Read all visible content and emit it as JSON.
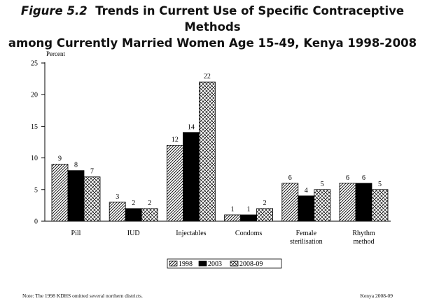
{
  "title": {
    "figure": "Figure 5.2",
    "line1": "Trends in Current Use of Specific Contraceptive Methods",
    "line2": "among Currently Married Women Age 15-49, Kenya 1998-2008"
  },
  "chart_data": {
    "type": "bar",
    "ylabel": "Percent",
    "ylim": [
      0,
      25
    ],
    "yticks": [
      0,
      5,
      10,
      15,
      20,
      25
    ],
    "grid": false,
    "legend_position": "bottom",
    "categories": [
      [
        "Pill"
      ],
      [
        "IUD"
      ],
      [
        "Injectables"
      ],
      [
        "Condoms"
      ],
      [
        "Female",
        "sterilisation"
      ],
      [
        "Rhythm",
        "method"
      ]
    ],
    "series": [
      {
        "name": "1998",
        "values": [
          9,
          3,
          12,
          1,
          6,
          6
        ],
        "pattern": "diagonal",
        "color": "#000000"
      },
      {
        "name": "2003",
        "values": [
          8,
          2,
          14,
          1,
          4,
          6
        ],
        "pattern": "solid",
        "color": "#000000"
      },
      {
        "name": "2008-09",
        "values": [
          7,
          2,
          22,
          2,
          5,
          5
        ],
        "pattern": "crosshatch",
        "color": "#000000"
      }
    ]
  },
  "footer": {
    "note": "Note: The 1998 KDHS omitted several northern districts.",
    "source": "Kenya 2008-09"
  }
}
